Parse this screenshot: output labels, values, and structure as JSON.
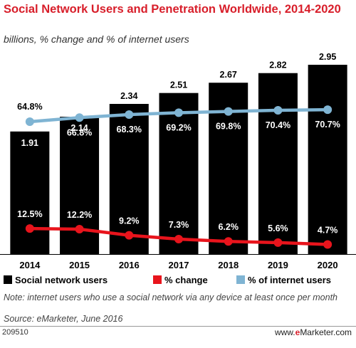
{
  "chart_data": {
    "type": "bar",
    "title": "Social Network Users and Penetration Worldwide, 2014-2020",
    "subtitle": "billions, % change and % of internet users",
    "categories": [
      "2014",
      "2015",
      "2016",
      "2017",
      "2018",
      "2019",
      "2020"
    ],
    "series": [
      {
        "name": "Social network users",
        "type": "bar",
        "color": "#000000",
        "values": [
          1.91,
          2.14,
          2.34,
          2.51,
          2.67,
          2.82,
          2.95
        ],
        "labels": [
          "1.91",
          "2.14",
          "2.34",
          "2.51",
          "2.67",
          "2.82",
          "2.95"
        ]
      },
      {
        "name": "% change",
        "type": "line",
        "color": "#e8141c",
        "values": [
          12.5,
          12.2,
          9.2,
          7.3,
          6.2,
          5.6,
          4.7
        ],
        "labels": [
          "12.5%",
          "12.2%",
          "9.2%",
          "7.3%",
          "6.2%",
          "5.6%",
          "4.7%"
        ]
      },
      {
        "name": "% of internet users",
        "type": "line",
        "color": "#7fb4d3",
        "values": [
          64.8,
          66.8,
          68.3,
          69.2,
          69.8,
          70.4,
          70.7
        ],
        "labels": [
          "64.8%",
          "66.8%",
          "68.3%",
          "69.2%",
          "69.8%",
          "70.4%",
          "70.7%"
        ]
      }
    ],
    "legend_position": "bottom",
    "grid": false
  },
  "note": "Note: internet users who use a social network via any device at least once per month",
  "source": "Source: eMarketer, June 2016",
  "chart_id": "209510",
  "brand": {
    "prefix": "www.",
    "name": "e",
    "suffix": "Marketer.com"
  }
}
